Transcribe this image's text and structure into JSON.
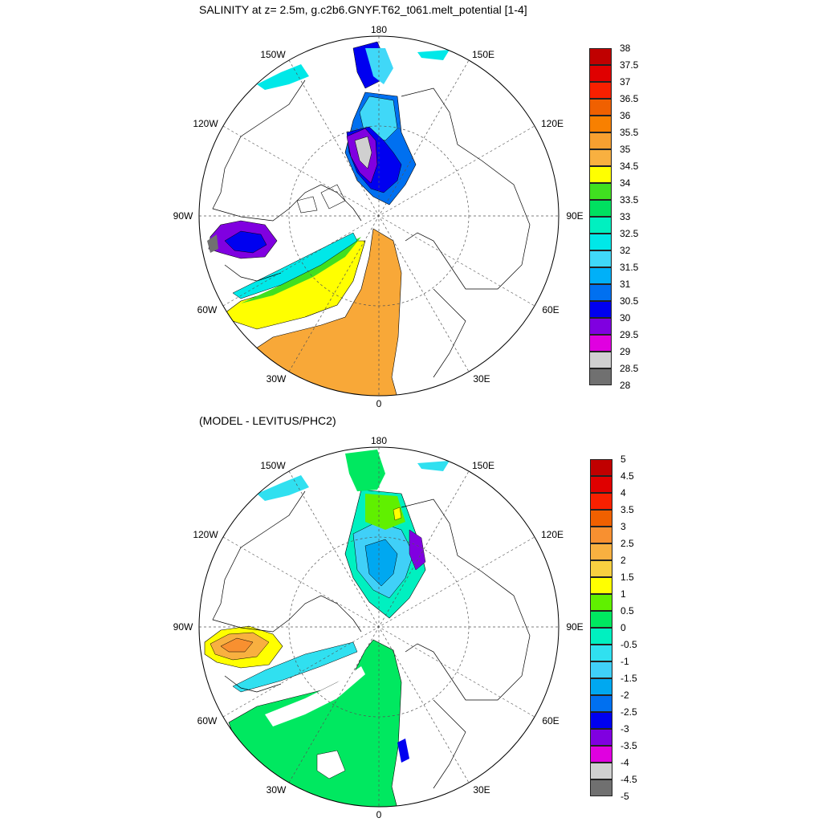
{
  "panels": [
    {
      "title": "SALINITY at z=   2.5m, g.c2b6.GNYF.T62_t061.melt_potential [1-4]",
      "lon_labels": {
        "top": "180",
        "bottom": "0",
        "left": "90W",
        "right": "90E",
        "upper_left": "150W",
        "upper_right": "150E",
        "mid_upper_left": "120W",
        "mid_upper_right": "120E",
        "mid_lower_left": "60W",
        "mid_lower_right": "60E",
        "lower_left": "30W",
        "lower_right": "30E"
      },
      "colorbar": {
        "labels": [
          "38",
          "37.5",
          "37",
          "36.5",
          "36",
          "35.5",
          "35",
          "34.5",
          "34",
          "33.5",
          "33",
          "32.5",
          "32",
          "31.5",
          "31",
          "30.5",
          "30",
          "29.5",
          "29",
          "28.5",
          "28"
        ],
        "colors": [
          "#c00000",
          "#e00000",
          "#f82000",
          "#f06000",
          "#f88000",
          "#f8a030",
          "#f8b040",
          "#ffff00",
          "#40e020",
          "#00e060",
          "#00f0c0",
          "#00e8e8",
          "#40d8f8",
          "#00b0f8",
          "#0070f0",
          "#0000f0",
          "#8000e0",
          "#e000e0",
          "#d0d0d0",
          "#707070"
        ]
      }
    },
    {
      "title": "(MODEL - LEVITUS/PHC2)",
      "lon_labels": {
        "top": "180",
        "bottom": "0",
        "left": "90W",
        "right": "90E",
        "upper_left": "150W",
        "upper_right": "150E",
        "mid_upper_left": "120W",
        "mid_upper_right": "120E",
        "mid_lower_left": "60W",
        "mid_lower_right": "60E",
        "lower_left": "30W",
        "lower_right": "30E"
      },
      "colorbar": {
        "labels": [
          "5",
          "4.5",
          "4",
          "3.5",
          "3",
          "2.5",
          "2",
          "1.5",
          "1",
          "0.5",
          "0",
          "-0.5",
          "-1",
          "-1.5",
          "-2",
          "-2.5",
          "-3",
          "-3.5",
          "-4",
          "-4.5",
          "-5"
        ],
        "colors": [
          "#c00000",
          "#e00000",
          "#f82000",
          "#f06000",
          "#f89030",
          "#f8b040",
          "#f8d040",
          "#ffff00",
          "#60f000",
          "#00e860",
          "#00f0c0",
          "#30e0f0",
          "#40d0f8",
          "#00a8f0",
          "#0070f0",
          "#0000f0",
          "#8000e0",
          "#e000e0",
          "#d0d0d0",
          "#707070"
        ]
      }
    }
  ]
}
